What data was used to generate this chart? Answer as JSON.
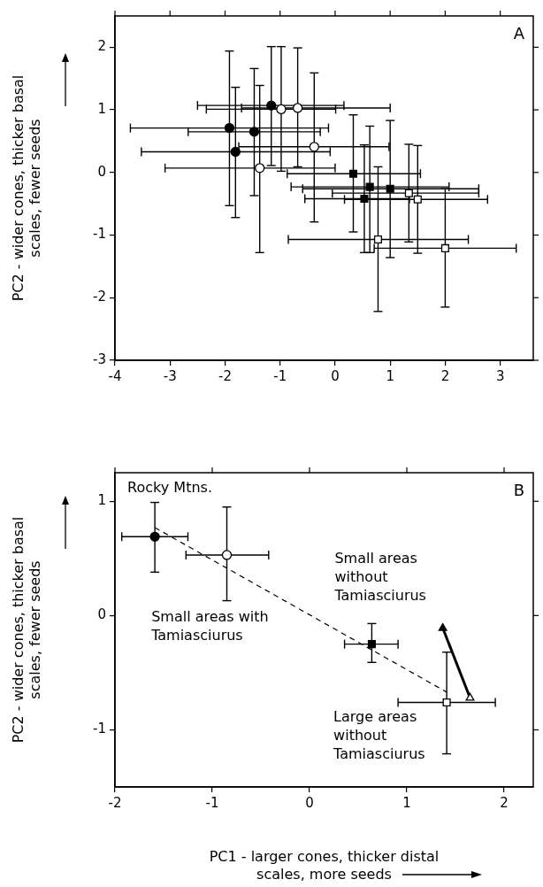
{
  "chart_data": [
    {
      "type": "scatter",
      "ylabel": "PC2 - wider cones, thicker basal\nscales, fewer seeds",
      "xlim": [
        -4,
        3.6
      ],
      "ylim": [
        -3,
        2.5
      ],
      "xticks": [
        -4,
        -3,
        -2,
        -1,
        0,
        1,
        2,
        3
      ],
      "yticks": [
        -3,
        -2,
        -1,
        0,
        1,
        2
      ],
      "grid": false,
      "legend": false,
      "annotations": [
        "A"
      ],
      "series": [
        {
          "color": "#000000",
          "marker": "circle",
          "x": [
            -1.16,
            -1.92,
            -1.47,
            -1.81
          ],
          "values": [
            1.07,
            0.71,
            0.65,
            0.33
          ],
          "errors": [
            [
              0.11,
              2.01
            ],
            [
              -0.53,
              1.94
            ],
            [
              -0.37,
              1.66
            ],
            [
              -0.72,
              1.36
            ]
          ],
          "xerrors": [
            [
              -2.5,
              0.16
            ],
            [
              -3.72,
              -0.12
            ],
            [
              -2.67,
              -0.27
            ],
            [
              -3.52,
              -0.09
            ]
          ]
        },
        {
          "color": "#ffffff",
          "marker": "circle",
          "x": [
            -0.98,
            -0.68,
            -0.38,
            -1.37
          ],
          "values": [
            1.01,
            1.03,
            0.41,
            0.07
          ],
          "errors": [
            [
              0.02,
              2.01
            ],
            [
              0.09,
              1.99
            ],
            [
              -0.79,
              1.59
            ],
            [
              -1.28,
              1.39
            ]
          ],
          "xerrors": [
            [
              -2.34,
              0.01
            ],
            [
              -1.7,
              1.0
            ],
            [
              -1.75,
              0.98
            ],
            [
              -3.09,
              0.0
            ]
          ]
        },
        {
          "color": "#000000",
          "marker": "square",
          "x": [
            0.33,
            0.63,
            1.0,
            0.53
          ],
          "values": [
            -0.02,
            -0.23,
            -0.26,
            -0.42
          ],
          "errors": [
            [
              -0.95,
              0.92
            ],
            [
              -1.28,
              0.74
            ],
            [
              -1.36,
              0.83
            ],
            [
              -1.28,
              0.44
            ]
          ],
          "xerrors": [
            [
              -0.87,
              1.55
            ],
            [
              -0.8,
              2.07
            ],
            [
              -0.59,
              2.61
            ],
            [
              -0.55,
              1.35
            ]
          ]
        },
        {
          "color": "#ffffff",
          "marker": "square",
          "x": [
            1.34,
            1.5,
            0.78,
            2.0
          ],
          "values": [
            -0.33,
            -0.43,
            -1.07,
            -1.21
          ],
          "errors": [
            [
              -1.11,
              0.45
            ],
            [
              -1.29,
              0.43
            ],
            [
              -2.22,
              0.09
            ],
            [
              -2.15,
              -0.26
            ]
          ],
          "xerrors": [
            [
              -0.05,
              2.61
            ],
            [
              0.17,
              2.77
            ],
            [
              -0.85,
              2.42
            ],
            [
              0.71,
              3.29
            ]
          ]
        }
      ]
    },
    {
      "type": "scatter",
      "xlabel": "PC1 - larger cones, thicker distal\nscales, more seeds",
      "ylabel": "PC2 - wider cones, thicker basal\nscales, fewer seeds",
      "xlim": [
        -2,
        2.3
      ],
      "ylim": [
        -1.5,
        1.25
      ],
      "xticks": [
        -2,
        -1,
        0,
        1,
        2
      ],
      "yticks": [
        -1,
        0,
        1
      ],
      "grid": false,
      "legend": false,
      "annotations": [
        "B",
        {
          "text": "Rocky Mtns.",
          "x": -1.59,
          "y": 0.69
        },
        "Small areas with\nTamiasciurus",
        {
          "text": "Small areas\nwithout\nTamiasciurus",
          "x": 0.64,
          "y": -0.25
        },
        {
          "text": "Large areas\nwithout\nTamiasciurus",
          "x": 1.41,
          "y": -0.76
        }
      ],
      "series": [
        {
          "type": "line",
          "color": "#000000",
          "line_style": "dashed",
          "marker": "none",
          "x": [
            -1.59,
            1.41
          ],
          "values": [
            0.77,
            -0.67
          ]
        },
        {
          "type": "line",
          "color": "#000000",
          "line_style": "solid",
          "marker": "none",
          "x": [
            1.37,
            1.65
          ],
          "values": [
            -0.11,
            -0.72
          ]
        },
        {
          "color": "#000000",
          "marker": "circle",
          "x": [
            -1.59
          ],
          "values": [
            0.69
          ],
          "errors": [
            [
              0.38,
              0.99
            ]
          ],
          "xerrors": [
            [
              -1.93,
              -1.25
            ]
          ]
        },
        {
          "color": "#ffffff",
          "marker": "circle",
          "x": [
            -0.85
          ],
          "values": [
            0.53
          ],
          "errors": [
            [
              0.13,
              0.95
            ]
          ],
          "xerrors": [
            [
              -1.27,
              -0.42
            ]
          ]
        },
        {
          "color": "#000000",
          "marker": "square",
          "x": [
            0.64
          ],
          "values": [
            -0.25
          ],
          "errors": [
            [
              -0.41,
              -0.07
            ]
          ],
          "xerrors": [
            [
              0.36,
              0.91
            ]
          ]
        },
        {
          "color": "#ffffff",
          "marker": "square",
          "x": [
            1.41
          ],
          "values": [
            -0.76
          ],
          "errors": [
            [
              -1.21,
              -0.32
            ]
          ],
          "xerrors": [
            [
              0.91,
              1.91
            ]
          ]
        },
        {
          "color": "#000000",
          "marker": "triangle",
          "x": [
            1.37
          ],
          "values": [
            -0.11
          ]
        },
        {
          "color": "#ffffff",
          "marker": "triangle",
          "x": [
            1.65
          ],
          "values": [
            -0.72
          ]
        }
      ]
    }
  ]
}
